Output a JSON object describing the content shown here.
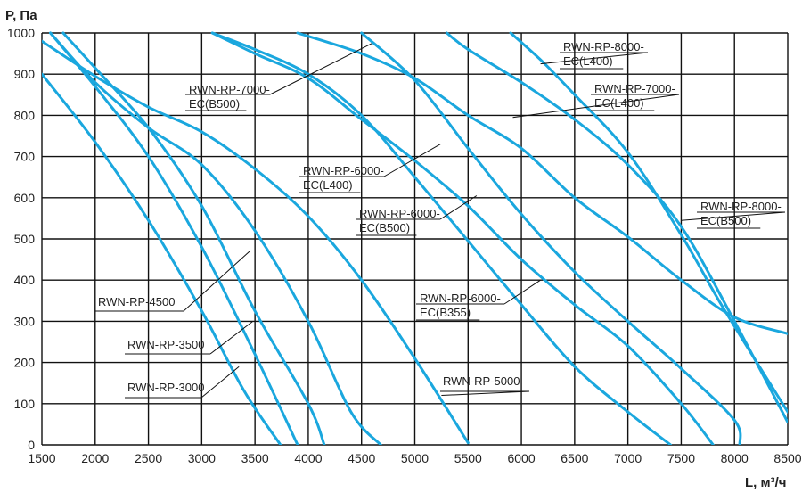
{
  "chart_data": {
    "type": "line",
    "title": "",
    "ylabel": "P, Па",
    "xlabel": "L, м³/ч",
    "xlim": [
      1500,
      8500
    ],
    "ylim": [
      0,
      1000
    ],
    "xticks": [
      1500,
      2000,
      2500,
      3000,
      3500,
      4000,
      4500,
      5000,
      5500,
      6000,
      6500,
      7000,
      7500,
      8000,
      8500
    ],
    "yticks": [
      0,
      100,
      200,
      300,
      400,
      500,
      600,
      700,
      800,
      900,
      1000
    ],
    "grid": true,
    "series": [
      {
        "name": "RWN-RP-3000",
        "points": [
          [
            1500,
            900
          ],
          [
            2000,
            735
          ],
          [
            2500,
            545
          ],
          [
            3000,
            325
          ],
          [
            3400,
            130
          ],
          [
            3740,
            0
          ]
        ],
        "label": [
          "RWN-RP-3000"
        ],
        "label_at": [
          3350,
          190
        ]
      },
      {
        "name": "RWN-RP-3500",
        "points": [
          [
            1580,
            1000
          ],
          [
            2000,
            870
          ],
          [
            2500,
            700
          ],
          [
            3000,
            480
          ],
          [
            3500,
            220
          ],
          [
            3900,
            0
          ]
        ],
        "label": [
          "RWN-RP-3500"
        ],
        "label_at": [
          3480,
          300
        ]
      },
      {
        "name": "RWN-RP-4500",
        "points": [
          [
            1700,
            1000
          ],
          [
            2000,
            915
          ],
          [
            2500,
            770
          ],
          [
            3000,
            580
          ],
          [
            3500,
            325
          ],
          [
            4000,
            100
          ],
          [
            4150,
            0
          ]
        ],
        "label": [
          "RWN-RP-4500"
        ],
        "label_at": [
          3450,
          470
        ]
      },
      {
        "name": "RWN-RP-5000",
        "points": [
          [
            1500,
            980
          ],
          [
            2000,
            895
          ],
          [
            2500,
            820
          ],
          [
            3000,
            760
          ],
          [
            3500,
            670
          ],
          [
            4000,
            555
          ],
          [
            4500,
            400
          ],
          [
            5000,
            210
          ],
          [
            5500,
            5
          ]
        ],
        "label": [
          "RWN-RP-5000"
        ],
        "label_at": [
          5250,
          120
        ]
      },
      {
        "name": "RWN-RP-7000-EC(B500)",
        "points": [
          [
            1580,
            1000
          ],
          [
            2000,
            880
          ],
          [
            2500,
            770
          ],
          [
            3000,
            680
          ],
          [
            3500,
            520
          ],
          [
            4000,
            300
          ],
          [
            4400,
            80
          ],
          [
            4680,
            0
          ]
        ],
        "label": [
          "RWN-RP-7000-",
          "EC(B500)"
        ],
        "label_at": [
          4600,
          975
        ]
      },
      {
        "name": "RWN-RP-6000-EC(L400)",
        "points": [
          [
            3100,
            1000
          ],
          [
            3500,
            960
          ],
          [
            4000,
            900
          ],
          [
            4500,
            800
          ],
          [
            5000,
            650
          ],
          [
            5500,
            495
          ],
          [
            6000,
            340
          ],
          [
            6500,
            190
          ],
          [
            7000,
            80
          ],
          [
            7400,
            0
          ]
        ],
        "label": [
          "RWN-RP-6000-",
          "EC(L400)"
        ],
        "label_at": [
          5240,
          730
        ]
      },
      {
        "name": "RWN-RP-6000-EC(B500)",
        "points": [
          [
            3100,
            1000
          ],
          [
            3500,
            950
          ],
          [
            4000,
            890
          ],
          [
            4500,
            790
          ],
          [
            5000,
            690
          ],
          [
            5500,
            580
          ],
          [
            6000,
            450
          ],
          [
            6500,
            340
          ],
          [
            7000,
            240
          ],
          [
            7500,
            100
          ],
          [
            7800,
            0
          ]
        ],
        "label": [
          "RWN-RP-6000-",
          "EC(B500)"
        ],
        "label_at": [
          5580,
          605
        ]
      },
      {
        "name": "RWN-RP-6000-EC(B355)",
        "points": [
          [
            4500,
            1000
          ],
          [
            5000,
            885
          ],
          [
            5500,
            720
          ],
          [
            6000,
            560
          ],
          [
            6500,
            420
          ],
          [
            7000,
            300
          ],
          [
            7500,
            185
          ],
          [
            8000,
            60
          ],
          [
            8050,
            0
          ]
        ],
        "label": [
          "RWN-RP-6000-",
          "EC(B355)"
        ],
        "label_at": [
          6180,
          400
        ]
      },
      {
        "name": "RWN-RP-7000-EC(L400)",
        "points": [
          [
            3900,
            1000
          ],
          [
            4500,
            950
          ],
          [
            5000,
            890
          ],
          [
            5500,
            800
          ],
          [
            6000,
            720
          ],
          [
            6500,
            600
          ],
          [
            7000,
            505
          ],
          [
            7500,
            400
          ],
          [
            8000,
            310
          ],
          [
            8500,
            270
          ]
        ],
        "label": [
          "RWN-RP-7000-",
          "EC(L400)"
        ],
        "label_at": [
          5920,
          795
        ]
      },
      {
        "name": "RWN-RP-8000-EC(L400)",
        "points": [
          [
            5300,
            1000
          ],
          [
            5500,
            960
          ],
          [
            6000,
            880
          ],
          [
            6500,
            790
          ],
          [
            7000,
            680
          ],
          [
            7500,
            530
          ],
          [
            8000,
            300
          ],
          [
            8500,
            55
          ]
        ],
        "label": [
          "RWN-RP-8000-",
          "EC(L400)"
        ],
        "label_at": [
          6180,
          925
        ]
      },
      {
        "name": "RWN-RP-8000-EC(B500)",
        "points": [
          [
            5900,
            1000
          ],
          [
            6200,
            930
          ],
          [
            6500,
            850
          ],
          [
            7000,
            710
          ],
          [
            7500,
            510
          ],
          [
            7900,
            330
          ],
          [
            8500,
            80
          ]
        ],
        "label": [
          "RWN-RP-8000-",
          "EC(B500)"
        ],
        "label_at": [
          7500,
          545
        ]
      }
    ],
    "colors": {
      "curve": "#1aa7de",
      "grid": "#111111",
      "text": "#222222"
    }
  }
}
